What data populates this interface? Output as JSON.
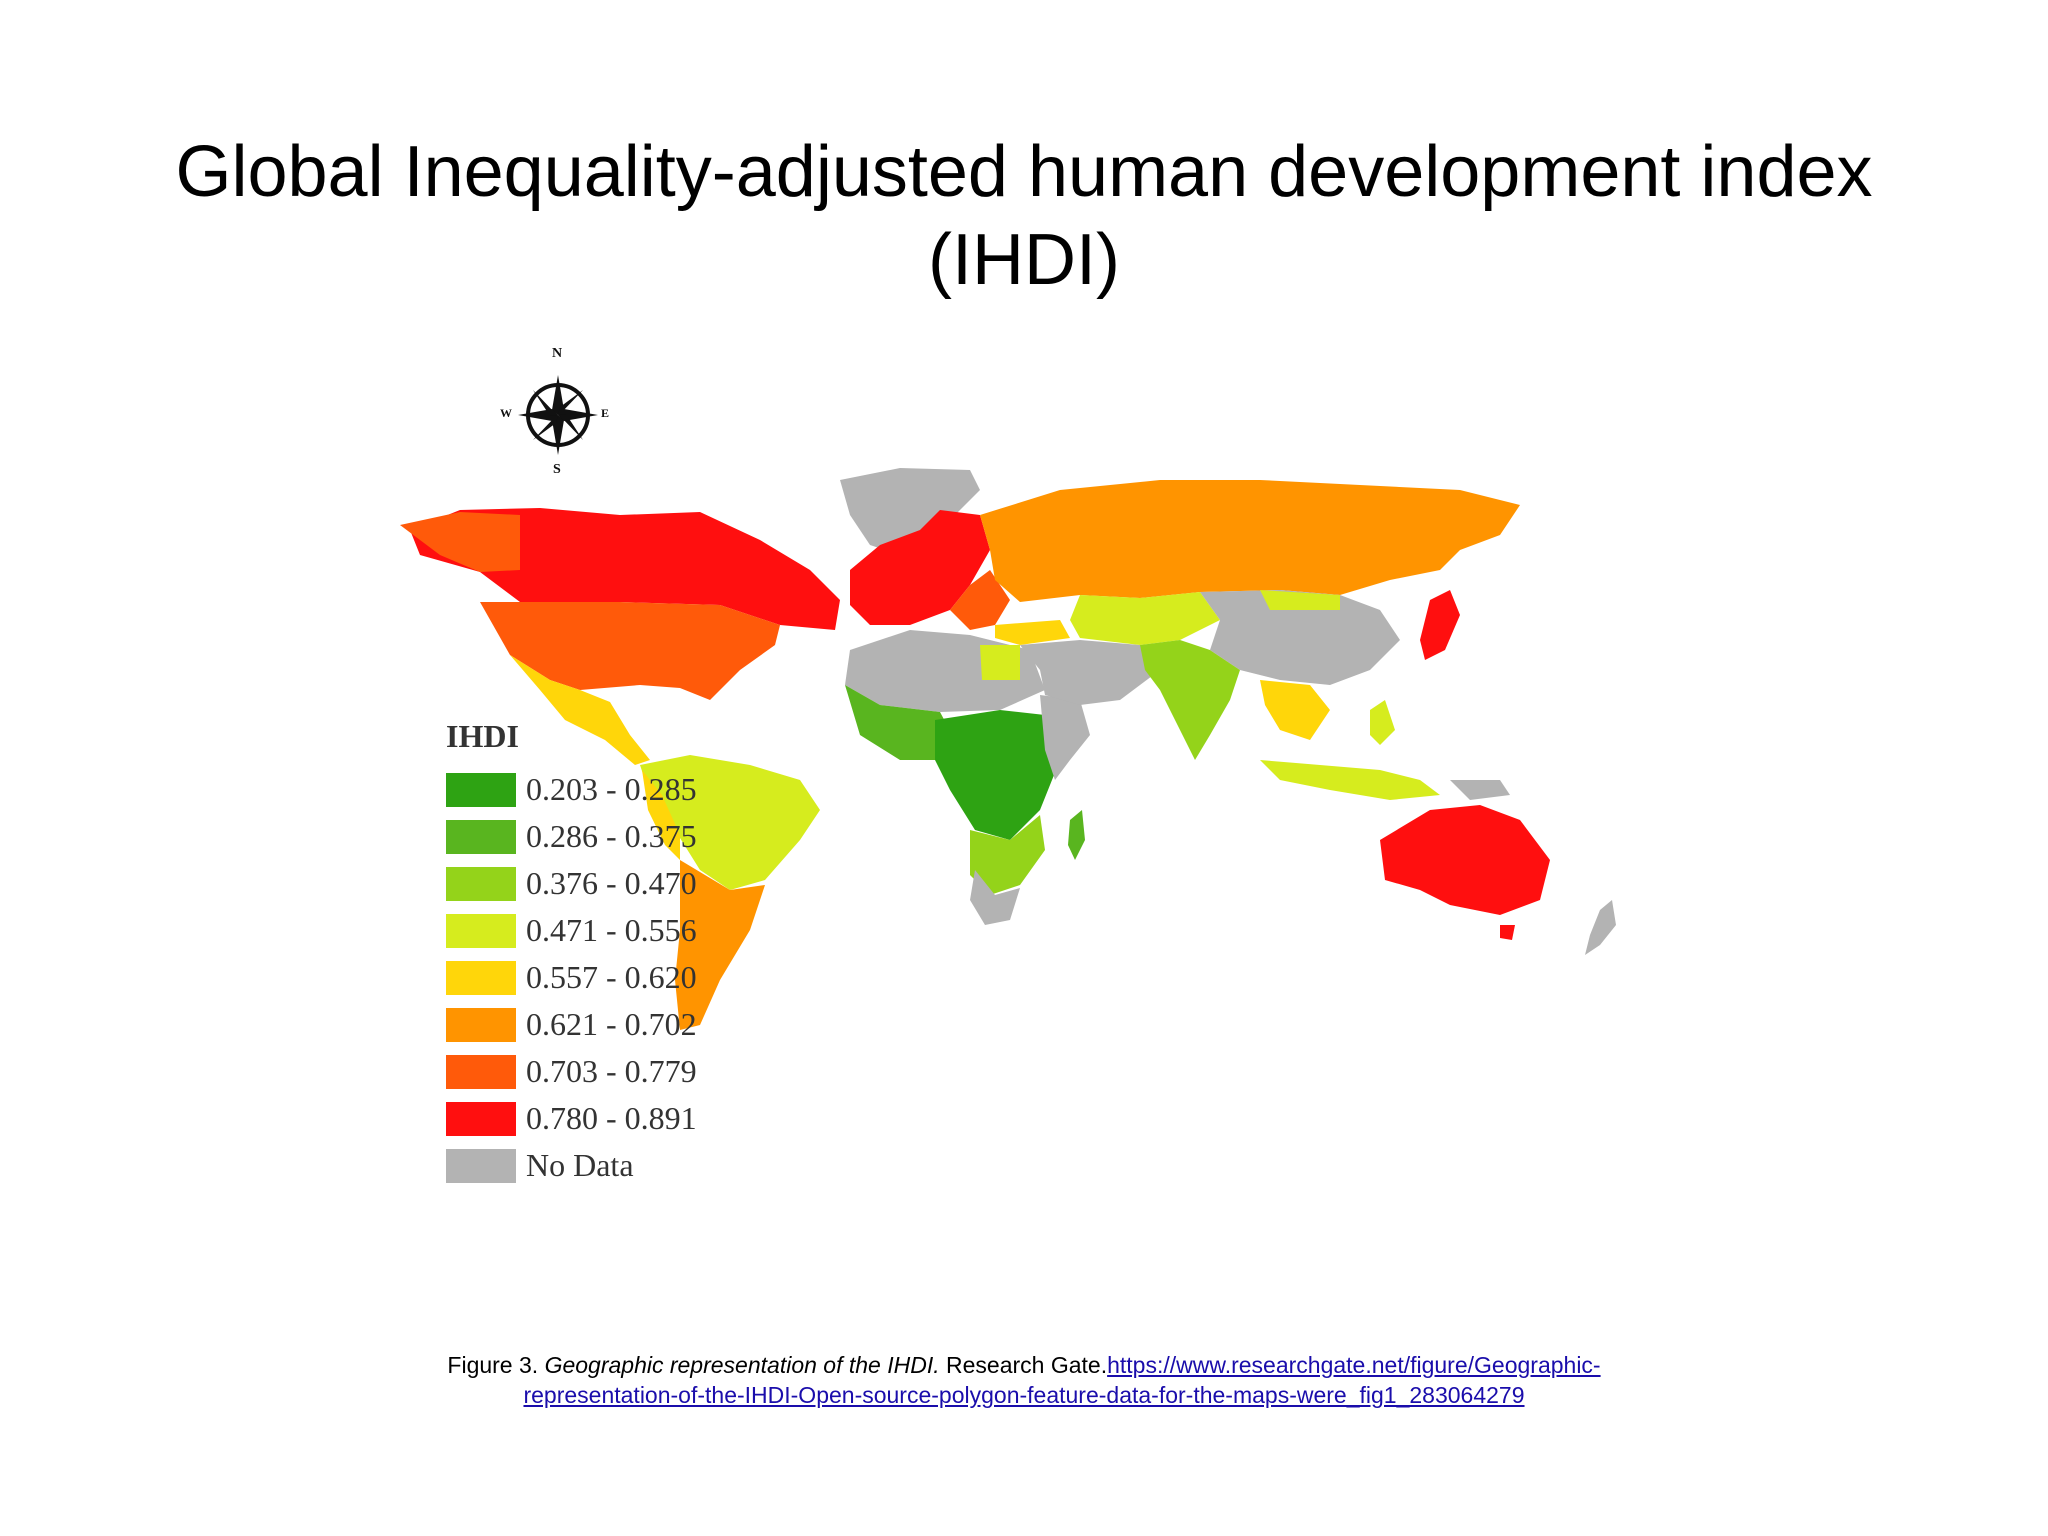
{
  "slide": {
    "title_line1": "Global Inequality-adjusted human development index",
    "title_line2": "(IHDI)"
  },
  "map": {
    "compass": {
      "n": "N",
      "s": "S",
      "e": "E",
      "w": "W"
    },
    "legend": {
      "title": "IHDI",
      "items": [
        {
          "label": "0.203 - 0.285",
          "color": "#2ea313"
        },
        {
          "label": "0.286 - 0.375",
          "color": "#59b51f"
        },
        {
          "label": "0.376 - 0.470",
          "color": "#94d31a"
        },
        {
          "label": "0.471 - 0.556",
          "color": "#d6ec1e"
        },
        {
          "label": "0.557 - 0.620",
          "color": "#ffd60a"
        },
        {
          "label": "0.621 - 0.702",
          "color": "#ff9400"
        },
        {
          "label": "0.703 - 0.779",
          "color": "#ff5a0a"
        },
        {
          "label": "0.780 - 0.891",
          "color": "#ff0f0f"
        },
        {
          "label": "No Data",
          "color": "#b3b3b3"
        }
      ]
    }
  },
  "caption": {
    "figure": "Figure 3.",
    "title": "Geographic representation of the IHDI.",
    "source": "Research Gate.",
    "link_line1": "https://www.researchgate.net/figure/Geographic-",
    "link_line2": "representation-of-the-IHDI-Open-source-polygon-feature-data-for-the-maps-were_fig1_283064279"
  }
}
